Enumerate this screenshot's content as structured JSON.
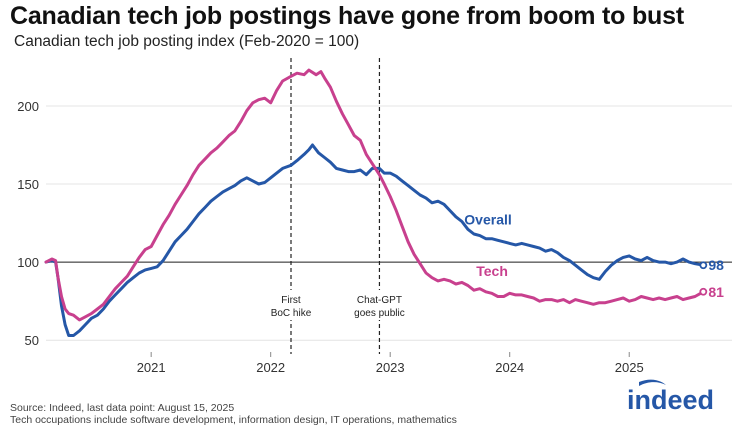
{
  "header": {
    "title": "Canadian tech job postings have gone from boom to bust",
    "subtitle": "Canadian tech job posting index (Feb-2020 = 100)"
  },
  "footer": {
    "source": "Source: Indeed, last data point: August 15, 2025",
    "note": "Tech occupations include software development, information design, IT operations, mathematics"
  },
  "brand": {
    "name": "indeed",
    "color": "#2557a7"
  },
  "chart_data": {
    "type": "line",
    "x_unit": "year",
    "xlim": [
      2020.12,
      2025.86
    ],
    "ylim": [
      45,
      232
    ],
    "yticks": [
      50,
      100,
      150,
      200
    ],
    "xticks": [
      {
        "value": 2021.0,
        "label": "2021"
      },
      {
        "value": 2022.0,
        "label": "2022"
      },
      {
        "value": 2023.0,
        "label": "2023"
      },
      {
        "value": 2024.0,
        "label": "2024"
      },
      {
        "value": 2025.0,
        "label": "2025"
      }
    ],
    "grid": "horizontal",
    "reference_line": 100,
    "events": [
      {
        "x": 2022.17,
        "label_lines": [
          "First",
          "BoC hike"
        ]
      },
      {
        "x": 2022.91,
        "label_lines": [
          "Chat-GPT",
          "goes public"
        ]
      }
    ],
    "series": [
      {
        "name": "Overall",
        "color": "#2557a7",
        "end_label": "98",
        "points": [
          [
            2020.12,
            100
          ],
          [
            2020.17,
            101
          ],
          [
            2020.2,
            100
          ],
          [
            2020.22,
            90
          ],
          [
            2020.25,
            72
          ],
          [
            2020.28,
            60
          ],
          [
            2020.31,
            53
          ],
          [
            2020.35,
            53
          ],
          [
            2020.4,
            56
          ],
          [
            2020.45,
            60
          ],
          [
            2020.5,
            64
          ],
          [
            2020.55,
            66
          ],
          [
            2020.6,
            70
          ],
          [
            2020.65,
            75
          ],
          [
            2020.7,
            79
          ],
          [
            2020.75,
            83
          ],
          [
            2020.8,
            87
          ],
          [
            2020.85,
            90
          ],
          [
            2020.9,
            93
          ],
          [
            2020.95,
            95
          ],
          [
            2021.0,
            96
          ],
          [
            2021.05,
            97
          ],
          [
            2021.1,
            101
          ],
          [
            2021.15,
            107
          ],
          [
            2021.2,
            113
          ],
          [
            2021.25,
            117
          ],
          [
            2021.3,
            121
          ],
          [
            2021.35,
            126
          ],
          [
            2021.4,
            131
          ],
          [
            2021.45,
            135
          ],
          [
            2021.5,
            139
          ],
          [
            2021.55,
            142
          ],
          [
            2021.6,
            145
          ],
          [
            2021.65,
            147
          ],
          [
            2021.7,
            149
          ],
          [
            2021.75,
            152
          ],
          [
            2021.8,
            154
          ],
          [
            2021.85,
            152
          ],
          [
            2021.9,
            150
          ],
          [
            2021.95,
            151
          ],
          [
            2022.0,
            154
          ],
          [
            2022.05,
            157
          ],
          [
            2022.1,
            160
          ],
          [
            2022.17,
            162
          ],
          [
            2022.22,
            165
          ],
          [
            2022.28,
            169
          ],
          [
            2022.32,
            172
          ],
          [
            2022.35,
            175
          ],
          [
            2022.4,
            170
          ],
          [
            2022.45,
            167
          ],
          [
            2022.5,
            164
          ],
          [
            2022.55,
            160
          ],
          [
            2022.6,
            159
          ],
          [
            2022.65,
            158
          ],
          [
            2022.7,
            158
          ],
          [
            2022.75,
            159
          ],
          [
            2022.8,
            156
          ],
          [
            2022.85,
            160
          ],
          [
            2022.91,
            160
          ],
          [
            2022.95,
            157
          ],
          [
            2023.0,
            157
          ],
          [
            2023.05,
            155
          ],
          [
            2023.1,
            152
          ],
          [
            2023.15,
            149
          ],
          [
            2023.2,
            146
          ],
          [
            2023.25,
            143
          ],
          [
            2023.3,
            141
          ],
          [
            2023.35,
            138
          ],
          [
            2023.4,
            139
          ],
          [
            2023.45,
            137
          ],
          [
            2023.5,
            133
          ],
          [
            2023.55,
            129
          ],
          [
            2023.6,
            126
          ],
          [
            2023.65,
            121
          ],
          [
            2023.7,
            118
          ],
          [
            2023.75,
            117
          ],
          [
            2023.8,
            115
          ],
          [
            2023.85,
            115
          ],
          [
            2023.9,
            114
          ],
          [
            2023.95,
            113
          ],
          [
            2024.0,
            112
          ],
          [
            2024.05,
            111
          ],
          [
            2024.1,
            112
          ],
          [
            2024.15,
            111
          ],
          [
            2024.2,
            110
          ],
          [
            2024.25,
            109
          ],
          [
            2024.3,
            107
          ],
          [
            2024.35,
            108
          ],
          [
            2024.4,
            106
          ],
          [
            2024.45,
            103
          ],
          [
            2024.5,
            101
          ],
          [
            2024.55,
            98
          ],
          [
            2024.6,
            95
          ],
          [
            2024.65,
            92
          ],
          [
            2024.7,
            90
          ],
          [
            2024.75,
            89
          ],
          [
            2024.8,
            94
          ],
          [
            2024.85,
            98
          ],
          [
            2024.9,
            101
          ],
          [
            2024.95,
            103
          ],
          [
            2025.0,
            104
          ],
          [
            2025.05,
            102
          ],
          [
            2025.1,
            101
          ],
          [
            2025.15,
            103
          ],
          [
            2025.2,
            101
          ],
          [
            2025.25,
            100
          ],
          [
            2025.3,
            100
          ],
          [
            2025.35,
            99
          ],
          [
            2025.4,
            100
          ],
          [
            2025.45,
            102
          ],
          [
            2025.5,
            100
          ],
          [
            2025.55,
            99
          ],
          [
            2025.62,
            98
          ]
        ]
      },
      {
        "name": "Tech",
        "color": "#c8408e",
        "end_label": "81",
        "points": [
          [
            2020.12,
            100
          ],
          [
            2020.17,
            102
          ],
          [
            2020.2,
            101
          ],
          [
            2020.22,
            90
          ],
          [
            2020.25,
            78
          ],
          [
            2020.28,
            70
          ],
          [
            2020.31,
            67
          ],
          [
            2020.35,
            66
          ],
          [
            2020.4,
            63
          ],
          [
            2020.45,
            65
          ],
          [
            2020.5,
            67
          ],
          [
            2020.55,
            70
          ],
          [
            2020.6,
            73
          ],
          [
            2020.65,
            78
          ],
          [
            2020.7,
            83
          ],
          [
            2020.75,
            87
          ],
          [
            2020.8,
            91
          ],
          [
            2020.85,
            97
          ],
          [
            2020.9,
            103
          ],
          [
            2020.95,
            108
          ],
          [
            2021.0,
            110
          ],
          [
            2021.05,
            117
          ],
          [
            2021.1,
            124
          ],
          [
            2021.15,
            130
          ],
          [
            2021.2,
            137
          ],
          [
            2021.25,
            143
          ],
          [
            2021.3,
            149
          ],
          [
            2021.35,
            156
          ],
          [
            2021.4,
            162
          ],
          [
            2021.45,
            166
          ],
          [
            2021.5,
            170
          ],
          [
            2021.55,
            173
          ],
          [
            2021.6,
            177
          ],
          [
            2021.65,
            181
          ],
          [
            2021.7,
            184
          ],
          [
            2021.75,
            190
          ],
          [
            2021.8,
            197
          ],
          [
            2021.85,
            202
          ],
          [
            2021.9,
            204
          ],
          [
            2021.95,
            205
          ],
          [
            2022.0,
            202
          ],
          [
            2022.05,
            210
          ],
          [
            2022.1,
            216
          ],
          [
            2022.17,
            219
          ],
          [
            2022.22,
            221
          ],
          [
            2022.28,
            220
          ],
          [
            2022.32,
            223
          ],
          [
            2022.38,
            220
          ],
          [
            2022.42,
            222
          ],
          [
            2022.45,
            218
          ],
          [
            2022.5,
            212
          ],
          [
            2022.55,
            203
          ],
          [
            2022.6,
            195
          ],
          [
            2022.65,
            188
          ],
          [
            2022.7,
            181
          ],
          [
            2022.75,
            178
          ],
          [
            2022.8,
            169
          ],
          [
            2022.85,
            163
          ],
          [
            2022.91,
            156
          ],
          [
            2022.95,
            150
          ],
          [
            2023.0,
            142
          ],
          [
            2023.05,
            133
          ],
          [
            2023.1,
            123
          ],
          [
            2023.15,
            113
          ],
          [
            2023.2,
            105
          ],
          [
            2023.25,
            99
          ],
          [
            2023.3,
            93
          ],
          [
            2023.35,
            90
          ],
          [
            2023.4,
            88
          ],
          [
            2023.45,
            89
          ],
          [
            2023.5,
            88
          ],
          [
            2023.55,
            86
          ],
          [
            2023.6,
            87
          ],
          [
            2023.65,
            85
          ],
          [
            2023.7,
            82
          ],
          [
            2023.75,
            83
          ],
          [
            2023.8,
            81
          ],
          [
            2023.85,
            80
          ],
          [
            2023.9,
            78
          ],
          [
            2023.95,
            78
          ],
          [
            2024.0,
            80
          ],
          [
            2024.05,
            79
          ],
          [
            2024.1,
            79
          ],
          [
            2024.15,
            78
          ],
          [
            2024.2,
            77
          ],
          [
            2024.25,
            75
          ],
          [
            2024.3,
            76
          ],
          [
            2024.35,
            76
          ],
          [
            2024.4,
            75
          ],
          [
            2024.45,
            76
          ],
          [
            2024.5,
            74
          ],
          [
            2024.55,
            76
          ],
          [
            2024.6,
            75
          ],
          [
            2024.65,
            74
          ],
          [
            2024.7,
            73
          ],
          [
            2024.75,
            74
          ],
          [
            2024.8,
            74
          ],
          [
            2024.85,
            75
          ],
          [
            2024.9,
            76
          ],
          [
            2024.95,
            77
          ],
          [
            2025.0,
            75
          ],
          [
            2025.05,
            76
          ],
          [
            2025.1,
            78
          ],
          [
            2025.15,
            77
          ],
          [
            2025.2,
            76
          ],
          [
            2025.25,
            77
          ],
          [
            2025.3,
            76
          ],
          [
            2025.35,
            77
          ],
          [
            2025.4,
            78
          ],
          [
            2025.45,
            76
          ],
          [
            2025.5,
            77
          ],
          [
            2025.55,
            78
          ],
          [
            2025.62,
            81
          ]
        ]
      }
    ],
    "inline_labels": [
      {
        "series": "Overall",
        "text": "Overall",
        "x": 2023.62,
        "y": 124
      },
      {
        "series": "Tech",
        "text": "Tech",
        "x": 2023.72,
        "y": 91
      }
    ]
  }
}
